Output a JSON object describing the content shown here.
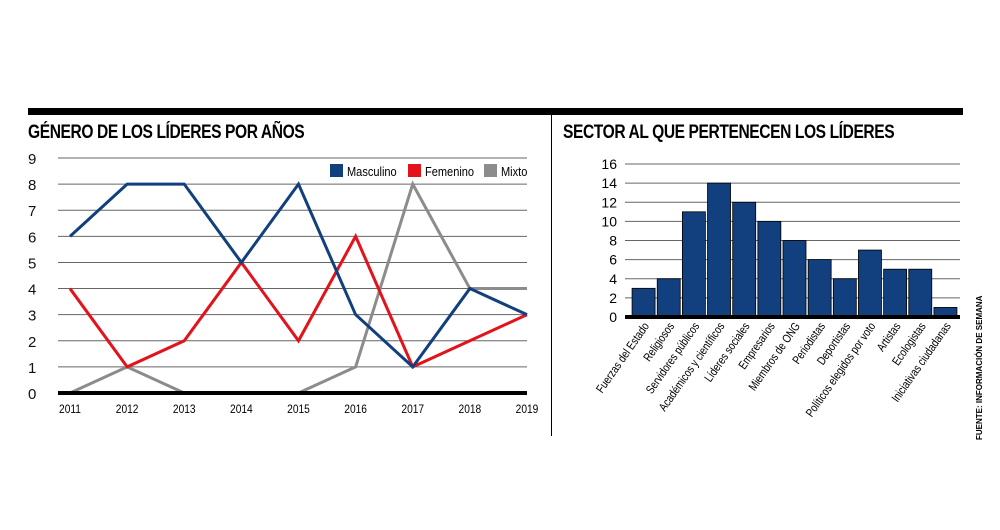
{
  "chart_data": [
    {
      "type": "line",
      "title": "GÉNERO DE LOS LÍDERES POR AÑOS",
      "categories": [
        "2011",
        "2012",
        "2013",
        "2014",
        "2015",
        "2016",
        "2017",
        "2018",
        "2019"
      ],
      "yticks": [
        "0",
        "1",
        "2",
        "3",
        "4",
        "5",
        "6",
        "7",
        "8",
        "9"
      ],
      "ylim": [
        0,
        9
      ],
      "grid": true,
      "legend_position": "top-right",
      "series": [
        {
          "name": "Masculino",
          "color": "#123f7d",
          "values": [
            6,
            8,
            8,
            5,
            8,
            3,
            1,
            4,
            3
          ]
        },
        {
          "name": "Femenino",
          "color": "#e3121b",
          "values": [
            4,
            1,
            2,
            5,
            2,
            6,
            1,
            2,
            3
          ]
        },
        {
          "name": "Mixto",
          "color": "#8c8c8c",
          "values": [
            0,
            1,
            0,
            0,
            0,
            1,
            8,
            4,
            4
          ]
        }
      ]
    },
    {
      "type": "bar",
      "title": "SECTOR AL QUE PERTENECEN LOS LÍDERES",
      "categories": [
        "Fuerzas del Estado",
        "Religiosos",
        "Servidores públicos",
        "Académicos y científicos",
        "Líderes sociales",
        "Empresarios",
        "Miembros de ONG",
        "Periodistas",
        "Deportistas",
        "Políticos elegidos por voto",
        "Artistas",
        "Ecologistas",
        "Iniciativas ciudadanas"
      ],
      "values": [
        3,
        4,
        11,
        14,
        12,
        10,
        8,
        6,
        4,
        7,
        5,
        5,
        1
      ],
      "yticks": [
        "0",
        "2",
        "4",
        "6",
        "8",
        "10",
        "12",
        "14",
        "16"
      ],
      "ylim": [
        0,
        16
      ],
      "grid": true,
      "color": "#123f7d"
    }
  ],
  "source": "FUENTE: INFORMACIÓN DE SEMANA"
}
